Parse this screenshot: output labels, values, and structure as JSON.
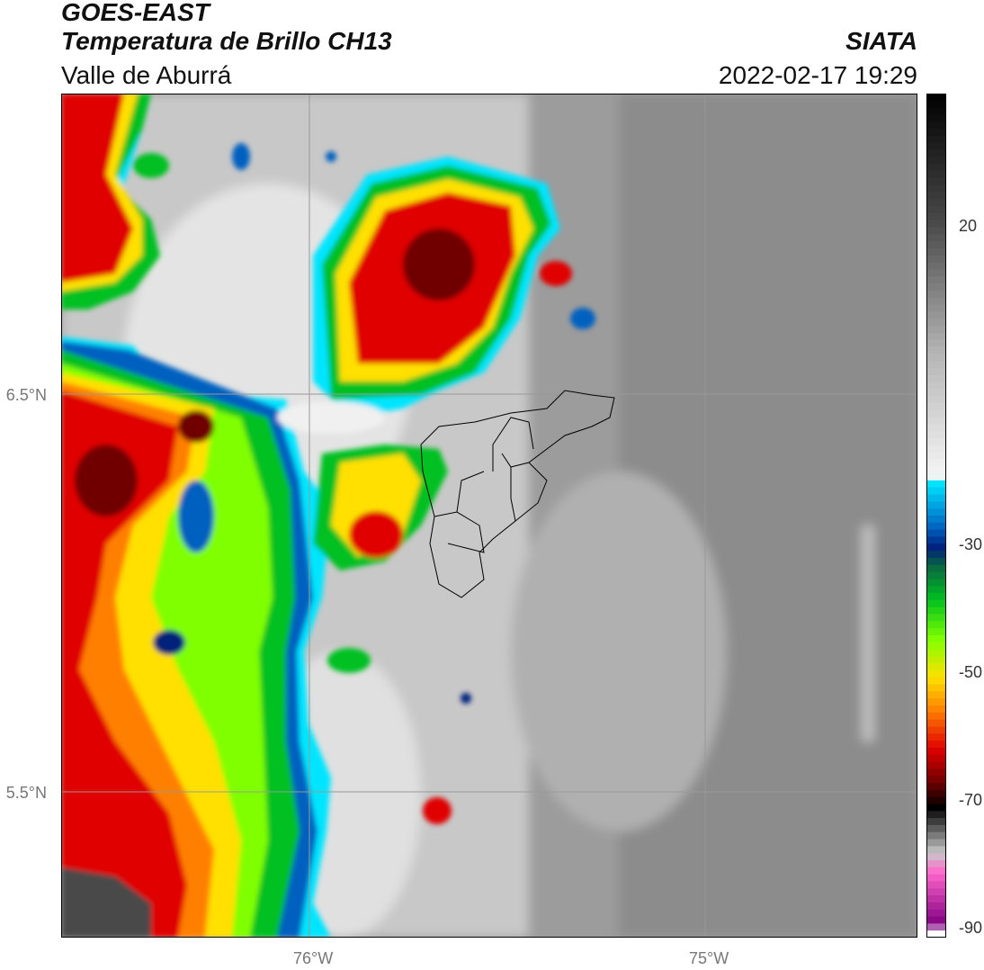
{
  "header": {
    "satellite": "GOES-EAST",
    "product": "Temperatura de Brillo CH13",
    "region": "Valle de Aburrá",
    "agency": "SIATA",
    "datetime": "2022-02-17 19:29"
  },
  "map": {
    "lat_labels": [
      "6.5°N",
      "5.5°N"
    ],
    "lon_labels": [
      "76°W",
      "75°W"
    ],
    "gridline_color": "#888888"
  },
  "colorbar": {
    "ticks": [
      "20",
      "-30",
      "-50",
      "-70",
      "-90"
    ],
    "stops": [
      {
        "v": 40,
        "c": "#000000"
      },
      {
        "v": 20,
        "c": "#4a4a4a"
      },
      {
        "v": 0,
        "c": "#b5b5b5"
      },
      {
        "v": -19,
        "c": "#f5f5f5"
      },
      {
        "v": -20,
        "c": "#00e5ff"
      },
      {
        "v": -27,
        "c": "#0060c0"
      },
      {
        "v": -30,
        "c": "#00207a"
      },
      {
        "v": -33,
        "c": "#0a6a40"
      },
      {
        "v": -38,
        "c": "#00c020"
      },
      {
        "v": -44,
        "c": "#80ff00"
      },
      {
        "v": -50,
        "c": "#ffe000"
      },
      {
        "v": -55,
        "c": "#ff8000"
      },
      {
        "v": -61,
        "c": "#e00000"
      },
      {
        "v": -66,
        "c": "#700000"
      },
      {
        "v": -70,
        "c": "#000000"
      },
      {
        "v": -77,
        "c": "#c8c8c8"
      },
      {
        "v": -80,
        "c": "#ff66cc"
      },
      {
        "v": -88,
        "c": "#800080"
      },
      {
        "v": -89,
        "c": "#ffffff"
      }
    ]
  }
}
